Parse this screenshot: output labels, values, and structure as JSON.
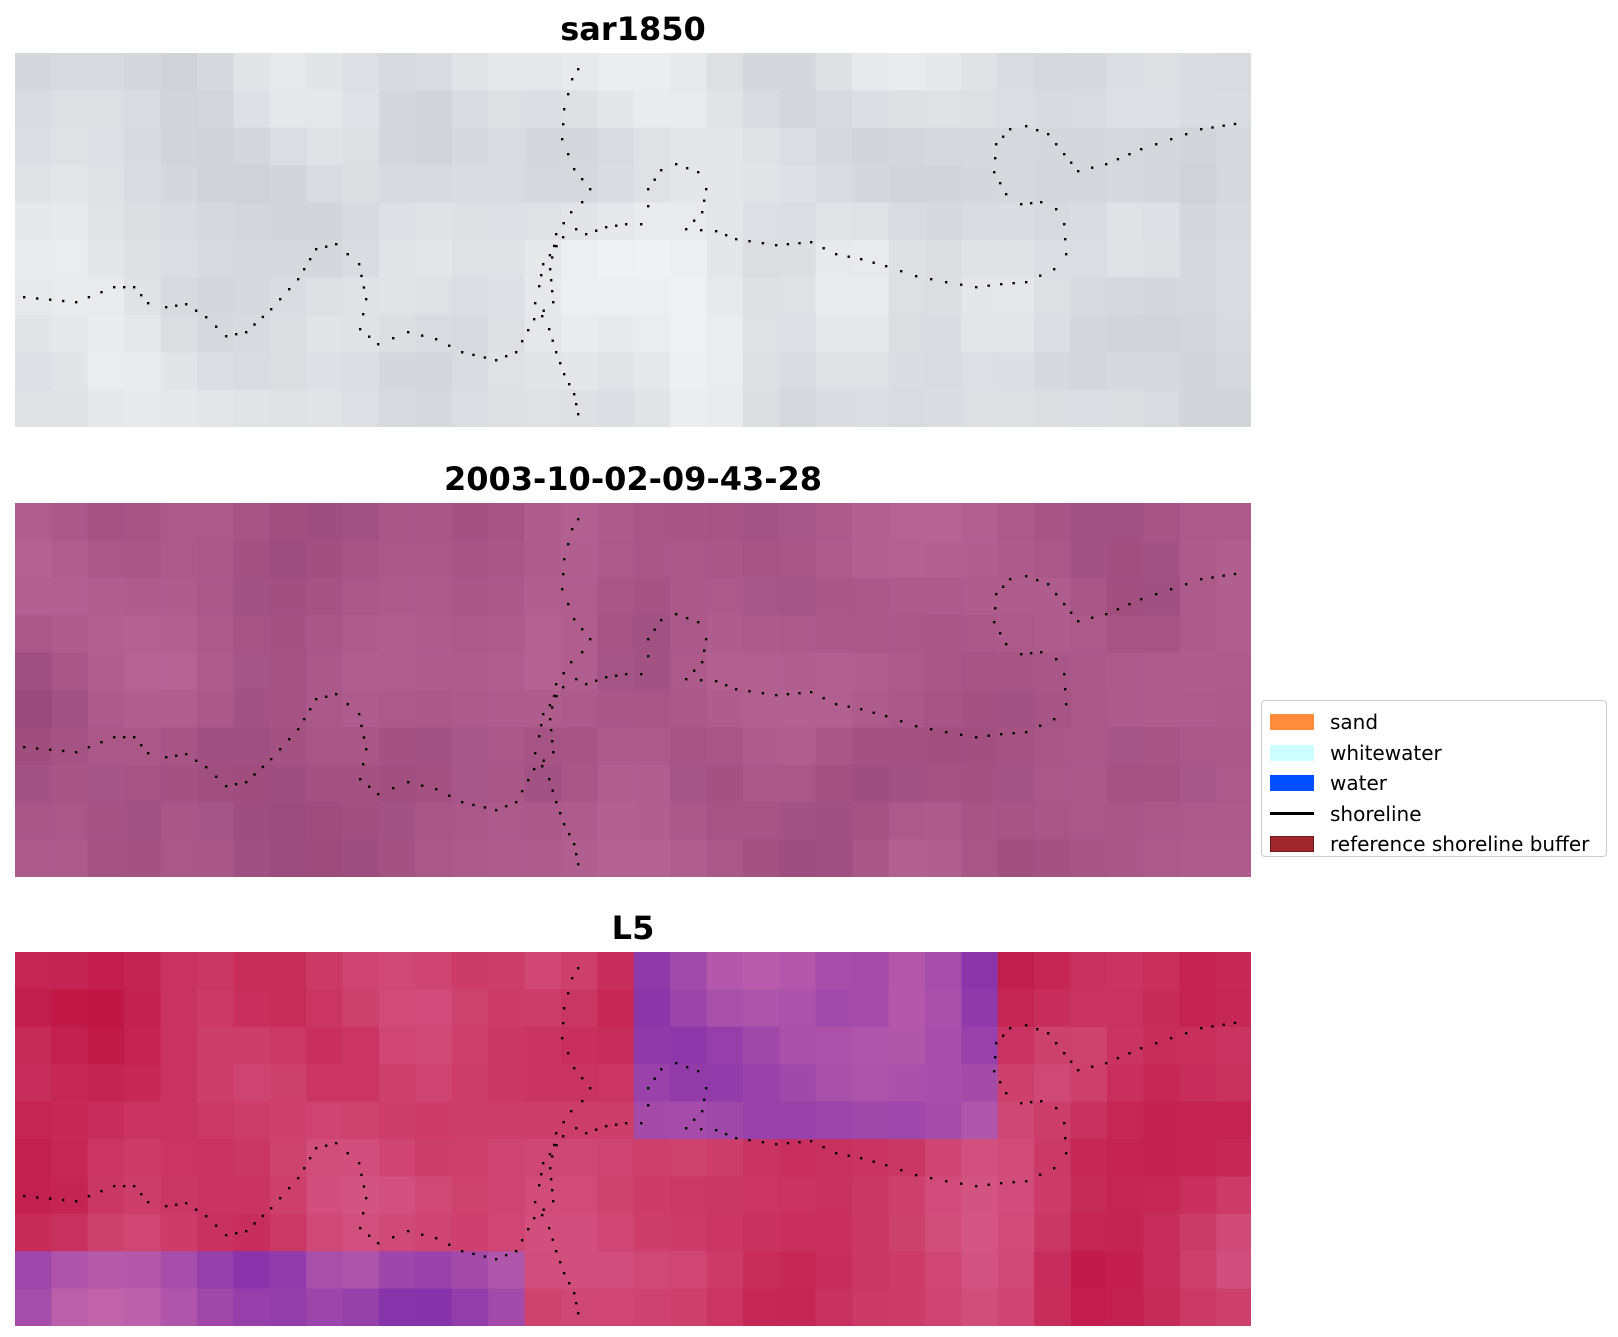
{
  "chart_data": {
    "type": "heatmap",
    "panels": [
      {
        "title": "sar1850",
        "palette": "gray"
      },
      {
        "title": "2003-10-02-09-43-28",
        "palette": "mauve"
      },
      {
        "title": "L5",
        "palette": "magenta"
      }
    ],
    "legend": {
      "placement": "right",
      "entries": [
        {
          "label": "sand",
          "kind": "patch",
          "color": "#ff8c3a"
        },
        {
          "label": "whitewater",
          "kind": "patch",
          "color": "#ccffff"
        },
        {
          "label": "water",
          "kind": "patch",
          "color": "#0050ff"
        },
        {
          "label": "shoreline",
          "kind": "line",
          "color": "#000000"
        },
        {
          "label": "reference shoreline buffer",
          "kind": "patch",
          "color": "#a0282d",
          "edge": "#6b1a1d"
        }
      ]
    },
    "grid": false,
    "axes_visible": false
  }
}
